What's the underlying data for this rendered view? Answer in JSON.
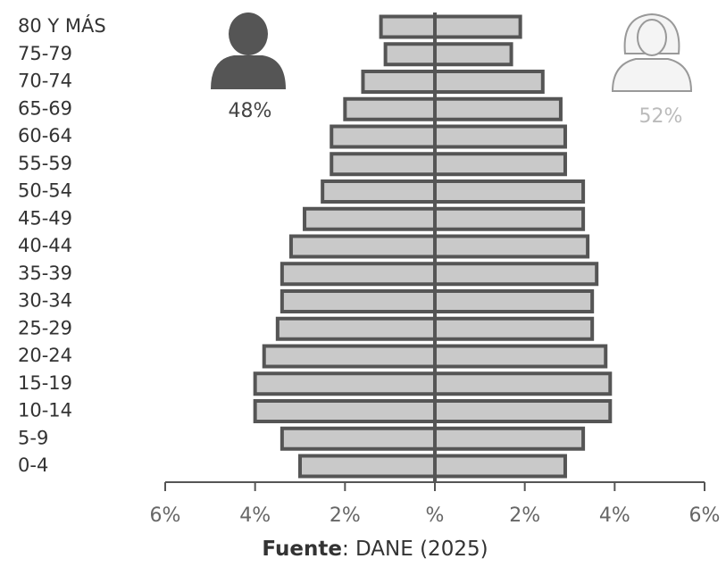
{
  "chart_data": {
    "type": "pyramid",
    "categories": [
      "80 Y MÁS",
      "75-79",
      "70-74",
      "65-69",
      "60-64",
      "55-59",
      "50-54",
      "45-49",
      "40-44",
      "35-39",
      "30-34",
      "25-29",
      "20-24",
      "15-19",
      "10-14",
      "5-9",
      "0-4"
    ],
    "series": [
      {
        "color": "#c9c9c9",
        "values": [
          -1.2,
          -1.1,
          -1.6,
          -2.0,
          -2.3,
          -2.3,
          -2.5,
          -2.9,
          -3.2,
          -3.4,
          -3.4,
          -3.5,
          -3.8,
          -4.0,
          -4.0,
          -3.4,
          -3.0
        ]
      },
      {
        "color": "#c9c9c9",
        "values": [
          1.9,
          1.7,
          2.4,
          2.8,
          2.9,
          2.9,
          3.3,
          3.3,
          3.4,
          3.6,
          3.5,
          3.5,
          3.8,
          3.9,
          3.9,
          3.3,
          2.9
        ]
      }
    ],
    "xlim": [
      -6,
      6
    ],
    "xticks": [
      {
        "value": -6,
        "label": "6%"
      },
      {
        "value": -4,
        "label": "4%"
      },
      {
        "value": -2,
        "label": "2%"
      },
      {
        "value": 0,
        "label": "%"
      },
      {
        "value": 2,
        "label": "2%"
      },
      {
        "value": 4,
        "label": "4%"
      },
      {
        "value": 6,
        "label": "6%"
      }
    ],
    "annotations": [
      {
        "text": "48%"
      },
      {
        "text": "52%"
      }
    ],
    "source_label": "Fuente",
    "source": ": DANE (2025)"
  }
}
